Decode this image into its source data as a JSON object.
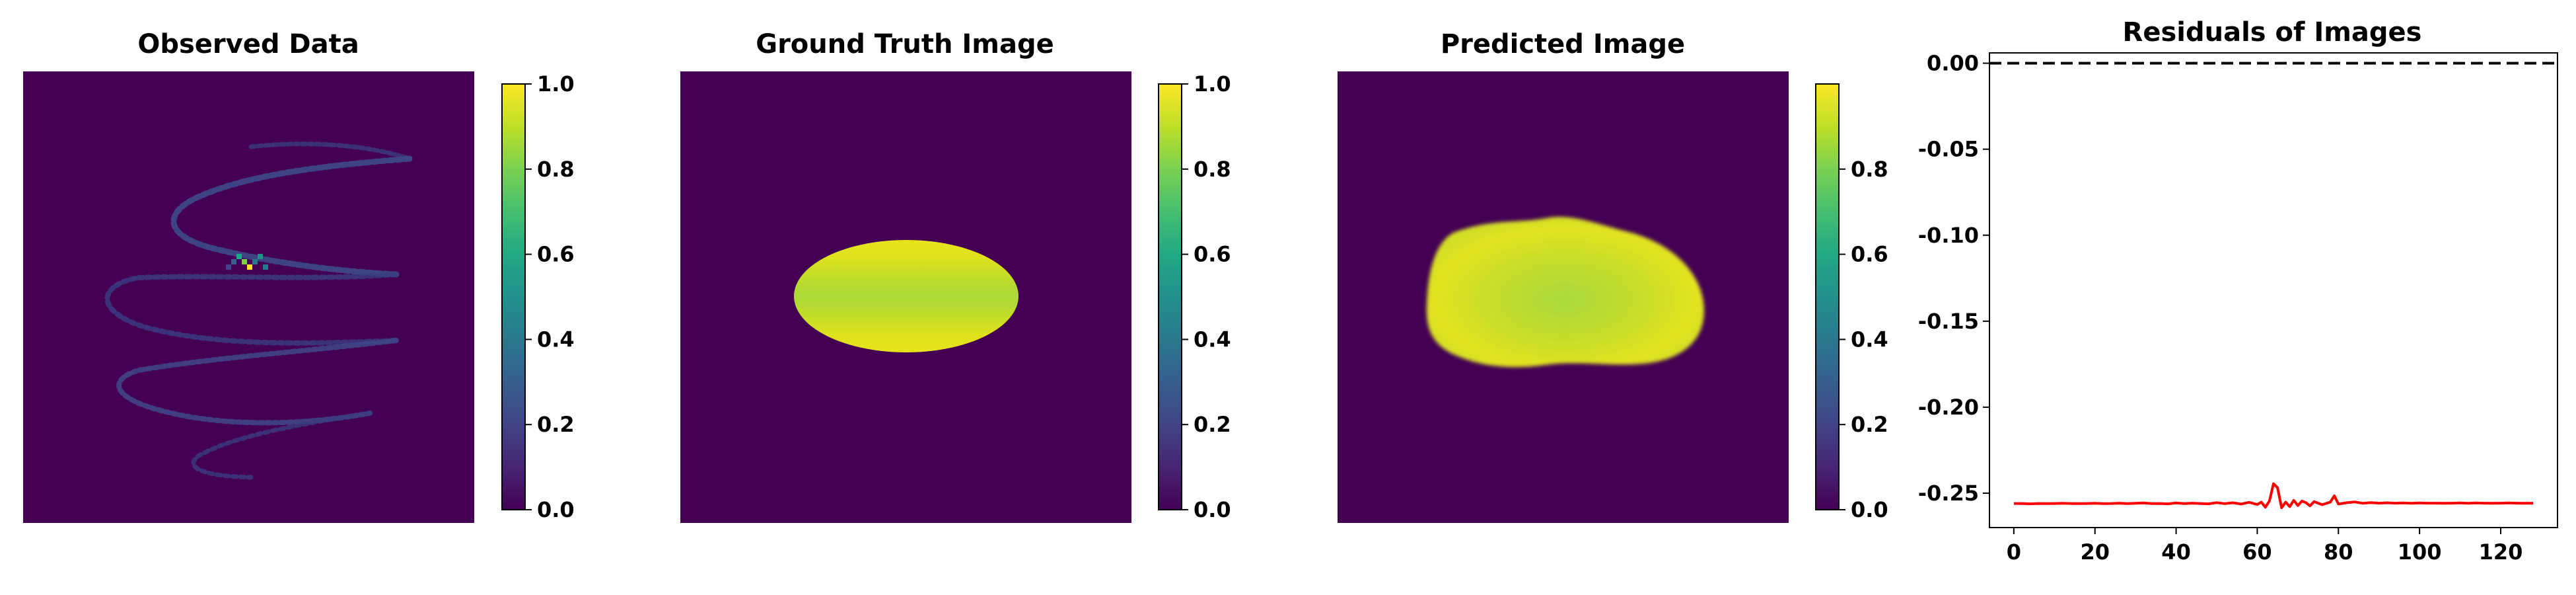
{
  "colormap": "viridis",
  "panels": [
    {
      "title": "Observed Data",
      "image": "sparse-spiral-projection",
      "colorbar": {
        "min": 0.0,
        "max": 1.0,
        "ticks": [
          "0.0",
          "0.2",
          "0.4",
          "0.6",
          "0.8",
          "1.0"
        ]
      }
    },
    {
      "title": "Ground Truth Image",
      "image": "ellipse-phantom",
      "colorbar": {
        "min": 0.0,
        "max": 1.0,
        "ticks": [
          "0.0",
          "0.2",
          "0.4",
          "0.6",
          "0.8",
          "1.0"
        ]
      }
    },
    {
      "title": "Predicted Image",
      "image": "blurred-ellipse-reconstruction",
      "colorbar": {
        "min": 0.0,
        "max": 1.0,
        "ticks": [
          "0.0",
          "0.2",
          "0.4",
          "0.6",
          "0.8"
        ]
      }
    }
  ],
  "chart_data": [
    {
      "type": "line",
      "title": "Residuals of Images",
      "xlabel": "",
      "ylabel": "",
      "xlim": [
        -6,
        134
      ],
      "ylim": [
        -0.27,
        0.006
      ],
      "xticks": [
        "0",
        "20",
        "40",
        "60",
        "80",
        "100",
        "120"
      ],
      "yticks": [
        "0.00",
        "-0.05",
        "-0.10",
        "-0.15",
        "-0.20",
        "-0.25"
      ],
      "grid": false,
      "reference_line": {
        "y": 0.0,
        "style": "dashed",
        "color": "#000000"
      },
      "series": [
        {
          "color": "#ff0000",
          "x": [
            0,
            2,
            4,
            6,
            8,
            10,
            12,
            14,
            16,
            18,
            20,
            22,
            24,
            26,
            28,
            30,
            32,
            34,
            36,
            38,
            40,
            42,
            44,
            46,
            48,
            50,
            52,
            54,
            56,
            58,
            60,
            61,
            62,
            63,
            64,
            65,
            66,
            67,
            68,
            69,
            70,
            71,
            72,
            73,
            74,
            76,
            78,
            79,
            80,
            82,
            84,
            86,
            88,
            90,
            92,
            94,
            96,
            98,
            100,
            102,
            104,
            106,
            108,
            110,
            112,
            114,
            116,
            118,
            120,
            122,
            124,
            126,
            128
          ],
          "y": [
            -0.256,
            -0.256,
            -0.2562,
            -0.256,
            -0.2561,
            -0.256,
            -0.2559,
            -0.256,
            -0.2561,
            -0.256,
            -0.2559,
            -0.2561,
            -0.256,
            -0.2558,
            -0.2561,
            -0.2559,
            -0.2557,
            -0.2561,
            -0.256,
            -0.2562,
            -0.2557,
            -0.2561,
            -0.2558,
            -0.256,
            -0.2562,
            -0.2555,
            -0.2561,
            -0.2556,
            -0.2563,
            -0.2553,
            -0.2566,
            -0.2552,
            -0.2582,
            -0.2545,
            -0.2445,
            -0.2468,
            -0.2585,
            -0.2552,
            -0.2578,
            -0.2542,
            -0.2572,
            -0.2546,
            -0.2555,
            -0.2574,
            -0.2549,
            -0.2567,
            -0.2552,
            -0.2515,
            -0.2563,
            -0.2556,
            -0.2551,
            -0.2559,
            -0.2555,
            -0.2558,
            -0.2556,
            -0.2558,
            -0.2557,
            -0.2559,
            -0.2557,
            -0.2558,
            -0.2558,
            -0.2559,
            -0.2558,
            -0.2557,
            -0.2559,
            -0.2557,
            -0.2558,
            -0.2559,
            -0.2558,
            -0.2557,
            -0.2558,
            -0.2559,
            -0.2558
          ]
        }
      ]
    }
  ]
}
